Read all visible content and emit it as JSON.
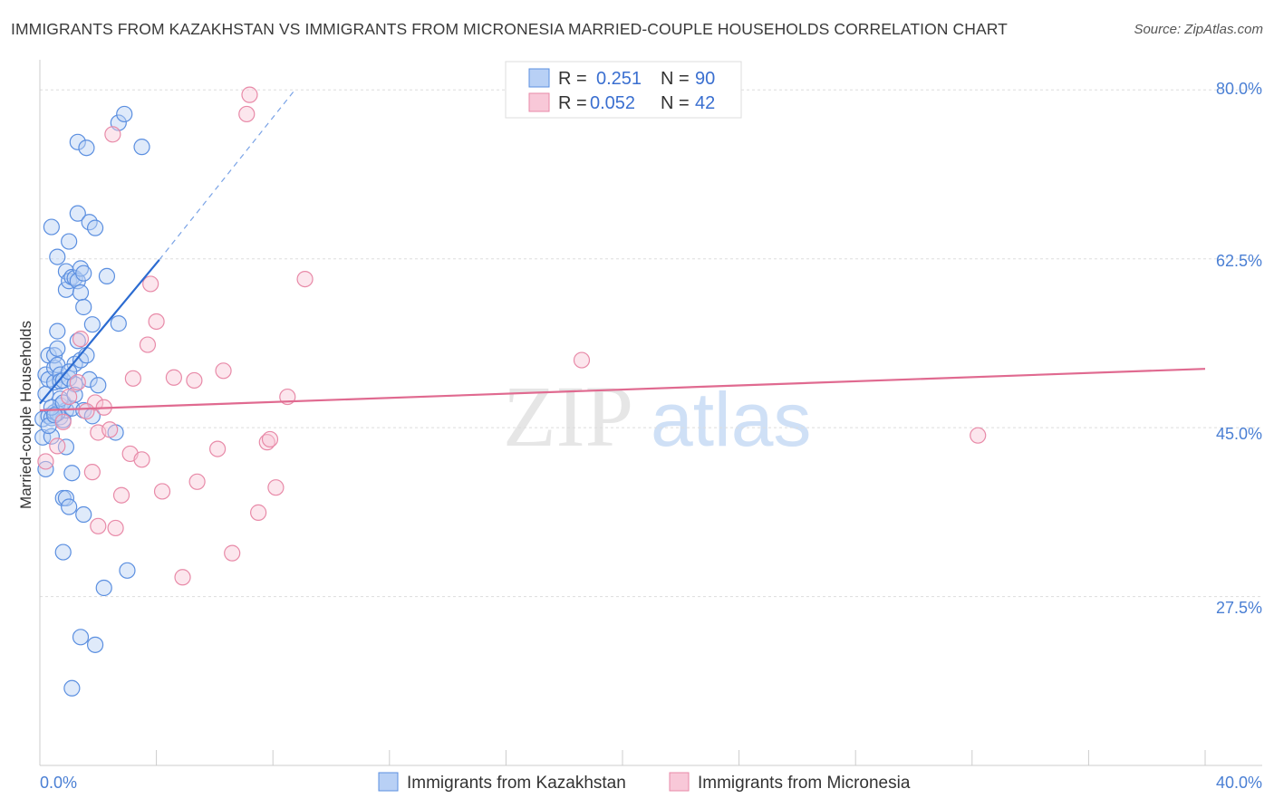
{
  "title": "IMMIGRANTS FROM KAZAKHSTAN VS IMMIGRANTS FROM MICRONESIA MARRIED-COUPLE HOUSEHOLDS CORRELATION CHART",
  "source": "Source: ZipAtlas.com",
  "watermark": {
    "zip": "ZIP",
    "atlas": "atlas"
  },
  "colors": {
    "blue": "#5b8fe0",
    "blue_fill": "#b8d0f5",
    "blue_line": "#2b6bd1",
    "pink": "#e88aa8",
    "pink_fill": "#f8c8d8",
    "pink_line": "#e06a90",
    "axis_text": "#4a7fd4",
    "grid": "#dddddd"
  },
  "legend": {
    "rows": [
      {
        "r_label": "R = ",
        "r_value": "0.251",
        "n_label": "N = ",
        "n_value": "90"
      },
      {
        "r_label": "R = ",
        "r_value": "0.052",
        "n_label": "N = ",
        "n_value": "42"
      }
    ]
  },
  "chart_data": {
    "type": "scatter",
    "title": "IMMIGRANTS FROM KAZAKHSTAN VS IMMIGRANTS FROM MICRONESIA MARRIED-COUPLE HOUSEHOLDS CORRELATION CHART",
    "xlabel": "",
    "ylabel": "Married-couple Households",
    "xlim": [
      0,
      40
    ],
    "ylim": [
      10,
      82
    ],
    "x_tick_labels": [
      "0.0%",
      "40.0%"
    ],
    "y_ticks": [
      27.5,
      45.0,
      62.5,
      80.0
    ],
    "y_tick_labels": [
      "27.5%",
      "45.0%",
      "62.5%",
      "80.0%"
    ],
    "series": [
      {
        "name": "Immigrants from Kazakhstan",
        "color": "blue",
        "trend": {
          "x0": 0.0,
          "y0": 47.5,
          "x1": 4.1,
          "y1": 62.4,
          "dash_x1": 8.7,
          "dash_y1": 79.8
        },
        "points": [
          [
            0.1,
            44.0
          ],
          [
            0.1,
            45.9
          ],
          [
            0.2,
            48.5
          ],
          [
            0.2,
            50.5
          ],
          [
            0.3,
            52.5
          ],
          [
            0.3,
            46.2
          ],
          [
            0.3,
            50.0
          ],
          [
            0.4,
            44.1
          ],
          [
            0.4,
            65.8
          ],
          [
            0.4,
            46.0
          ],
          [
            0.5,
            49.7
          ],
          [
            0.5,
            51.2
          ],
          [
            0.5,
            52.5
          ],
          [
            0.5,
            46.6
          ],
          [
            0.6,
            62.7
          ],
          [
            0.6,
            55.0
          ],
          [
            0.6,
            53.2
          ],
          [
            0.6,
            51.5
          ],
          [
            0.7,
            50.5
          ],
          [
            0.7,
            49.8
          ],
          [
            0.7,
            47.3
          ],
          [
            0.7,
            46.1
          ],
          [
            0.8,
            32.1
          ],
          [
            0.8,
            37.7
          ],
          [
            0.8,
            45.8
          ],
          [
            0.8,
            49.9
          ],
          [
            0.9,
            37.7
          ],
          [
            0.9,
            46.8
          ],
          [
            0.9,
            43.0
          ],
          [
            0.9,
            59.3
          ],
          [
            0.9,
            61.2
          ],
          [
            1.0,
            50.1
          ],
          [
            1.0,
            36.8
          ],
          [
            1.0,
            60.2
          ],
          [
            1.0,
            64.3
          ],
          [
            1.1,
            47.0
          ],
          [
            1.1,
            40.3
          ],
          [
            1.1,
            60.6
          ],
          [
            1.1,
            18.0
          ],
          [
            1.2,
            51.6
          ],
          [
            1.2,
            49.5
          ],
          [
            1.2,
            60.5
          ],
          [
            1.3,
            74.6
          ],
          [
            1.3,
            67.2
          ],
          [
            1.3,
            54.0
          ],
          [
            1.3,
            60.2
          ],
          [
            1.4,
            52.0
          ],
          [
            1.4,
            61.5
          ],
          [
            1.4,
            59.0
          ],
          [
            1.4,
            23.3
          ],
          [
            1.5,
            36.0
          ],
          [
            1.5,
            57.5
          ],
          [
            1.5,
            61.0
          ],
          [
            1.5,
            46.8
          ],
          [
            1.6,
            74.0
          ],
          [
            1.6,
            52.5
          ],
          [
            1.7,
            66.3
          ],
          [
            1.7,
            50.0
          ],
          [
            1.8,
            55.7
          ],
          [
            1.8,
            46.2
          ],
          [
            1.9,
            65.7
          ],
          [
            1.9,
            22.5
          ],
          [
            2.0,
            49.4
          ],
          [
            2.2,
            28.4
          ],
          [
            2.3,
            60.7
          ],
          [
            2.6,
            44.5
          ],
          [
            2.7,
            76.6
          ],
          [
            2.7,
            55.8
          ],
          [
            2.9,
            77.5
          ],
          [
            3.0,
            30.2
          ],
          [
            3.5,
            74.1
          ],
          [
            0.2,
            40.7
          ],
          [
            0.6,
            46.5
          ],
          [
            0.7,
            48.0
          ],
          [
            1.0,
            50.8
          ],
          [
            0.4,
            47.1
          ],
          [
            0.3,
            45.2
          ],
          [
            0.5,
            46.3
          ],
          [
            0.8,
            47.6
          ],
          [
            1.2,
            48.4
          ]
        ]
      },
      {
        "name": "Immigrants from Micronesia",
        "color": "pink",
        "trend": {
          "x0": 0.0,
          "y0": 46.8,
          "x1": 40.0,
          "y1": 51.1
        },
        "points": [
          [
            0.2,
            41.5
          ],
          [
            0.6,
            43.1
          ],
          [
            0.8,
            45.6
          ],
          [
            1.3,
            49.7
          ],
          [
            1.4,
            54.2
          ],
          [
            1.8,
            40.4
          ],
          [
            1.9,
            47.6
          ],
          [
            2.0,
            44.5
          ],
          [
            2.0,
            34.8
          ],
          [
            2.2,
            47.1
          ],
          [
            2.4,
            44.8
          ],
          [
            2.5,
            75.4
          ],
          [
            2.6,
            34.6
          ],
          [
            2.8,
            38.0
          ],
          [
            3.1,
            42.3
          ],
          [
            3.2,
            50.1
          ],
          [
            3.5,
            41.7
          ],
          [
            3.7,
            53.6
          ],
          [
            3.8,
            59.9
          ],
          [
            4.0,
            56.0
          ],
          [
            4.2,
            38.4
          ],
          [
            4.6,
            50.2
          ],
          [
            4.9,
            29.5
          ],
          [
            5.3,
            49.9
          ],
          [
            5.4,
            39.4
          ],
          [
            6.1,
            42.8
          ],
          [
            6.3,
            50.9
          ],
          [
            6.6,
            32.0
          ],
          [
            7.1,
            77.5
          ],
          [
            7.2,
            79.5
          ],
          [
            7.5,
            36.2
          ],
          [
            7.8,
            43.5
          ],
          [
            7.9,
            43.8
          ],
          [
            8.1,
            38.8
          ],
          [
            8.5,
            48.2
          ],
          [
            9.1,
            60.4
          ],
          [
            18.6,
            52.0
          ],
          [
            32.2,
            44.2
          ],
          [
            1.0,
            48.2
          ],
          [
            1.6,
            46.7
          ]
        ]
      }
    ]
  },
  "bottom_legend": [
    {
      "label": "Immigrants from Kazakhstan"
    },
    {
      "label": "Immigrants from Micronesia"
    }
  ]
}
